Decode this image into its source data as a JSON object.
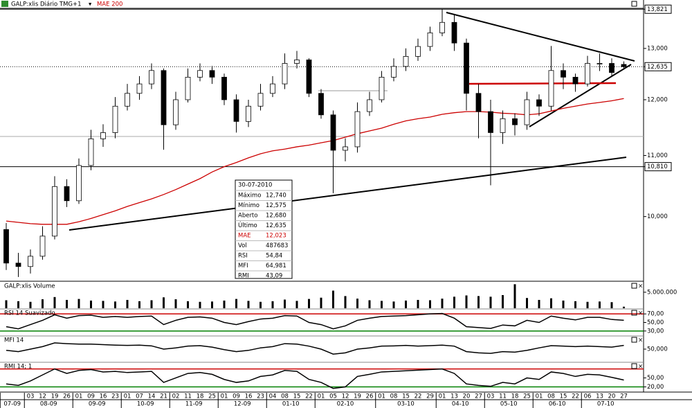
{
  "header": {
    "symbol_title": "GALP:xlis Diário TMG+1"
  },
  "chart_data": {
    "type": "candlestick",
    "log_scale": true,
    "ylim": [
      9050,
      13900
    ],
    "yticks": [
      {
        "value": 13821,
        "label": "13,821",
        "boxed": true,
        "line": "solid"
      },
      {
        "value": 13000,
        "label": "13,000"
      },
      {
        "value": 12635,
        "label": "12,635",
        "boxed": true,
        "line": "dotted"
      },
      {
        "value": 12000,
        "label": "12,000"
      },
      {
        "value": 11000,
        "label": "11,000"
      },
      {
        "value": 10810,
        "label": "10,810",
        "boxed": true,
        "line": "solid"
      },
      {
        "value": 10000,
        "label": "10,000"
      }
    ],
    "months": [
      {
        "label": "07-09",
        "days": [
          null,
          null
        ]
      },
      {
        "label": "08-09",
        "days": [
          "03",
          "12",
          "19",
          "26"
        ]
      },
      {
        "label": "09-09",
        "days": [
          "01",
          "09",
          "16",
          "23"
        ]
      },
      {
        "label": "10-09",
        "days": [
          "01",
          "07",
          "14",
          "21"
        ]
      },
      {
        "label": "11-09",
        "days": [
          "02",
          "11",
          "18",
          "25"
        ]
      },
      {
        "label": "12-09",
        "days": [
          "01",
          "09",
          "16",
          "23"
        ]
      },
      {
        "label": "01-10",
        "days": [
          "04",
          "08",
          "15",
          "22"
        ]
      },
      {
        "label": "02-10",
        "days": [
          "01",
          "05",
          "12",
          "19",
          "26"
        ]
      },
      {
        "label": "03-10",
        "days": [
          "01",
          "08",
          "15",
          "22",
          "29"
        ]
      },
      {
        "label": "04-10",
        "days": [
          "01",
          "13",
          "20",
          "27"
        ]
      },
      {
        "label": "05-10",
        "days": [
          "03",
          "11",
          "18",
          "25"
        ]
      },
      {
        "label": "06-10",
        "days": [
          "01",
          "08",
          "15",
          "22"
        ]
      },
      {
        "label": "07-10",
        "days": [
          "06",
          "13",
          "20",
          "27"
        ]
      }
    ],
    "open": [
      9800,
      9300,
      9250,
      9400,
      9700,
      10480,
      10250,
      10830,
      11290,
      11400,
      11880,
      12120,
      12300,
      12560,
      11540,
      12000,
      12430,
      12560,
      12430,
      12000,
      11600,
      11880,
      12120,
      12300,
      12700,
      12770,
      12120,
      11720,
      11090,
      11150,
      11780,
      12000,
      12430,
      12640,
      12840,
      13040,
      13320,
      13540,
      13110,
      12120,
      11780,
      11400,
      11650,
      11540,
      12000,
      11880,
      12560,
      12430,
      12300,
      12700,
      12700,
      12680
    ],
    "high": [
      9900,
      9450,
      9500,
      9850,
      10650,
      10600,
      10950,
      11450,
      11550,
      12050,
      12300,
      12450,
      12700,
      12600,
      12150,
      12600,
      12700,
      12650,
      12500,
      12100,
      12000,
      12300,
      12450,
      12900,
      12950,
      12800,
      12200,
      11800,
      11300,
      11950,
      12150,
      12550,
      12800,
      13000,
      13200,
      13450,
      13821,
      13700,
      13200,
      12300,
      12000,
      11800,
      11750,
      12150,
      12100,
      13050,
      12700,
      12500,
      12850,
      12900,
      12800,
      12740
    ],
    "low": [
      9200,
      9100,
      9150,
      9350,
      9650,
      10150,
      10200,
      10750,
      11150,
      11300,
      11800,
      12000,
      12200,
      11100,
      11450,
      11950,
      12350,
      12300,
      11900,
      11400,
      11500,
      11800,
      12050,
      12200,
      12600,
      12050,
      11650,
      10370,
      10900,
      11050,
      11700,
      11950,
      12350,
      12550,
      12750,
      12950,
      13250,
      12950,
      11800,
      11300,
      10500,
      11200,
      11350,
      11450,
      11700,
      11800,
      12200,
      12150,
      12250,
      12550,
      12450,
      12575
    ],
    "close": [
      9300,
      9250,
      9400,
      9700,
      10480,
      10250,
      10830,
      11290,
      11400,
      11880,
      12120,
      12300,
      12560,
      11540,
      12000,
      12430,
      12560,
      12430,
      12000,
      11600,
      11880,
      12120,
      12300,
      12700,
      12770,
      12120,
      11720,
      11090,
      11150,
      11780,
      12000,
      12430,
      12640,
      12840,
      13040,
      13320,
      13540,
      13110,
      12120,
      11780,
      11400,
      11650,
      11540,
      12000,
      11880,
      12560,
      12430,
      12300,
      12700,
      12700,
      12520,
      12635
    ],
    "up_color": "#ffffff",
    "down_color": "#000000",
    "series": [
      {
        "name": "MAE 200",
        "color": "#cc0000",
        "values": [
          9930,
          9910,
          9890,
          9880,
          9880,
          9880,
          9920,
          9970,
          10030,
          10090,
          10160,
          10220,
          10280,
          10350,
          10430,
          10520,
          10610,
          10720,
          10810,
          10880,
          10960,
          11030,
          11080,
          11110,
          11150,
          11180,
          11220,
          11260,
          11320,
          11380,
          11430,
          11480,
          11550,
          11610,
          11650,
          11680,
          11730,
          11760,
          11780,
          11780,
          11770,
          11750,
          11740,
          11720,
          11740,
          11790,
          11840,
          11880,
          11920,
          11950,
          11980,
          12023
        ]
      }
    ]
  },
  "info_box": {
    "date": "30-07-2010",
    "rows": [
      [
        "Máximo",
        "12,740"
      ],
      [
        "Mínimo",
        "12,575"
      ],
      [
        "Aberto",
        "12,680"
      ],
      [
        "Último",
        "12,635"
      ],
      [
        "MAE",
        "12,023"
      ],
      [
        "Vol",
        "487683"
      ],
      [
        "RSI",
        "54,84"
      ],
      [
        "MFI",
        "64,981"
      ],
      [
        "RMI",
        "43,09"
      ]
    ]
  },
  "panels": [
    {
      "title": "GALP:xlis Volume",
      "type": "bar",
      "color": "#000000",
      "ylim": [
        0,
        8000000
      ],
      "yticks": [
        {
          "value": 5000000,
          "label": "5.000.000"
        }
      ],
      "values": [
        2500000,
        2200000,
        2000000,
        2800000,
        3500000,
        2600000,
        2900000,
        2400000,
        2300000,
        2100000,
        2600000,
        2200000,
        2500000,
        3400000,
        2800000,
        2200000,
        2000000,
        2100000,
        2400000,
        2900000,
        2300000,
        2000000,
        2200000,
        2700000,
        2300000,
        2900000,
        3300000,
        5500000,
        3800000,
        3000000,
        2500000,
        2300000,
        2100000,
        2400000,
        2600000,
        2500000,
        3000000,
        3600000,
        4000000,
        3800000,
        3600000,
        4100000,
        7500000,
        3200000,
        2600000,
        3100000,
        2400000,
        2200000,
        2000000,
        2100000,
        1900000,
        487683
      ]
    },
    {
      "title": "RSI 14 Suavizado",
      "type": "line",
      "color": "#000000",
      "ylim": [
        20,
        80
      ],
      "yticks": [
        {
          "value": 70,
          "label": "70,00"
        },
        {
          "value": 50,
          "label": "50,00"
        },
        {
          "value": 30,
          "label": "30,00"
        }
      ],
      "reference_lines": [
        {
          "value": 70,
          "color": "#cc0000"
        },
        {
          "value": 30,
          "color": "#008000"
        }
      ],
      "values": [
        40,
        35,
        45,
        55,
        68,
        60,
        66,
        67,
        62,
        64,
        62,
        64,
        65,
        45,
        55,
        62,
        63,
        60,
        50,
        45,
        52,
        58,
        60,
        66,
        65,
        50,
        45,
        35,
        42,
        55,
        60,
        64,
        65,
        66,
        68,
        70,
        71,
        60,
        40,
        38,
        36,
        44,
        42,
        55,
        50,
        65,
        60,
        56,
        62,
        62,
        57,
        55
      ]
    },
    {
      "title": "MFI 14",
      "type": "line",
      "color": "#000000",
      "ylim": [
        0,
        100
      ],
      "yticks": [
        {
          "value": 50,
          "label": "50,000"
        }
      ],
      "values": [
        45,
        40,
        50,
        60,
        75,
        72,
        70,
        70,
        68,
        66,
        65,
        66,
        63,
        50,
        55,
        62,
        64,
        58,
        48,
        40,
        45,
        55,
        60,
        72,
        70,
        62,
        50,
        30,
        35,
        50,
        55,
        62,
        63,
        65,
        62,
        64,
        66,
        62,
        40,
        35,
        33,
        40,
        38,
        45,
        55,
        64,
        62,
        60,
        62,
        60,
        58,
        65
      ]
    },
    {
      "title": "RMI 14; 1",
      "type": "line",
      "color": "#000000",
      "ylim": [
        5,
        100
      ],
      "yticks": [
        {
          "value": 50,
          "label": "50,00"
        },
        {
          "value": 20,
          "label": "20,00"
        }
      ],
      "reference_lines": [
        {
          "value": 80,
          "color": "#cc0000"
        },
        {
          "value": 20,
          "color": "#008000"
        }
      ],
      "values": [
        30,
        25,
        40,
        60,
        80,
        65,
        75,
        78,
        70,
        72,
        68,
        70,
        72,
        35,
        50,
        65,
        68,
        62,
        45,
        35,
        40,
        55,
        60,
        75,
        72,
        45,
        35,
        15,
        20,
        55,
        62,
        70,
        72,
        74,
        76,
        78,
        80,
        65,
        30,
        25,
        22,
        35,
        30,
        50,
        45,
        70,
        65,
        55,
        62,
        60,
        52,
        43
      ]
    }
  ]
}
